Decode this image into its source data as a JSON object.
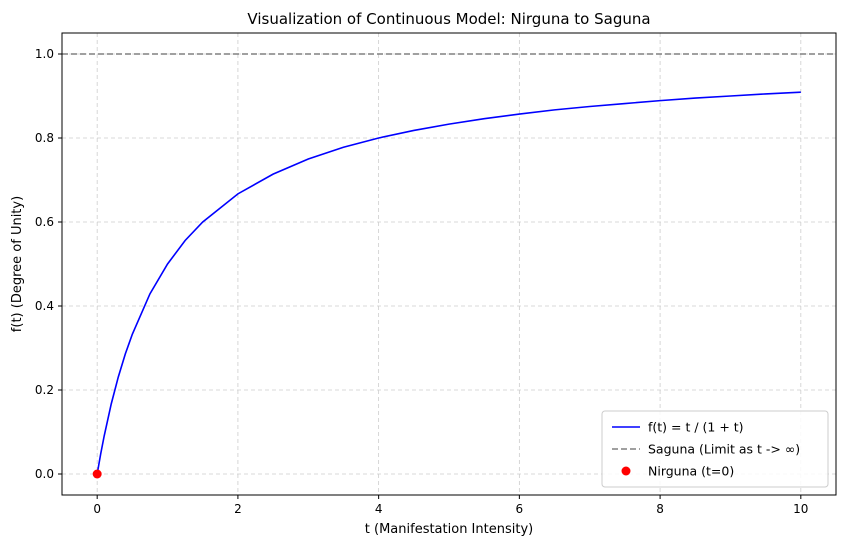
{
  "chart_data": {
    "type": "line",
    "title": "Visualization of Continuous Model: Nirguna to Saguna",
    "xlabel": "t (Manifestation Intensity)",
    "ylabel": "f(t) (Degree of Unity)",
    "xlim": [
      -0.5,
      10.5
    ],
    "ylim": [
      -0.05,
      1.05
    ],
    "xticks": [
      0,
      2,
      4,
      6,
      8,
      10
    ],
    "yticks": [
      0.0,
      0.2,
      0.4,
      0.6,
      0.8,
      1.0
    ],
    "xtick_labels": [
      "0",
      "2",
      "4",
      "6",
      "8",
      "10"
    ],
    "ytick_labels": [
      "0.0",
      "0.2",
      "0.4",
      "0.6",
      "0.8",
      "1.0"
    ],
    "grid": true,
    "legend_position": "lower-right",
    "series": [
      {
        "name": "f(t) = t / (1 + t)",
        "kind": "line",
        "color": "#0000ff",
        "x": [
          0,
          0.05,
          0.1,
          0.2,
          0.3,
          0.4,
          0.5,
          0.75,
          1,
          1.25,
          1.5,
          2,
          2.5,
          3,
          3.5,
          4,
          4.5,
          5,
          5.5,
          6,
          6.5,
          7,
          7.5,
          8,
          8.5,
          9,
          9.5,
          10
        ],
        "y": [
          0,
          0.048,
          0.091,
          0.167,
          0.231,
          0.286,
          0.333,
          0.429,
          0.5,
          0.556,
          0.6,
          0.667,
          0.714,
          0.75,
          0.778,
          0.8,
          0.818,
          0.833,
          0.846,
          0.857,
          0.867,
          0.875,
          0.882,
          0.889,
          0.895,
          0.9,
          0.905,
          0.909
        ]
      },
      {
        "name": "Saguna (Limit as t -> ∞)",
        "kind": "hline",
        "color": "#808080",
        "y": 1.0
      },
      {
        "name": "Nirguna (t=0)",
        "kind": "point",
        "color": "#ff0000",
        "x": [
          0
        ],
        "y": [
          0
        ]
      }
    ]
  }
}
